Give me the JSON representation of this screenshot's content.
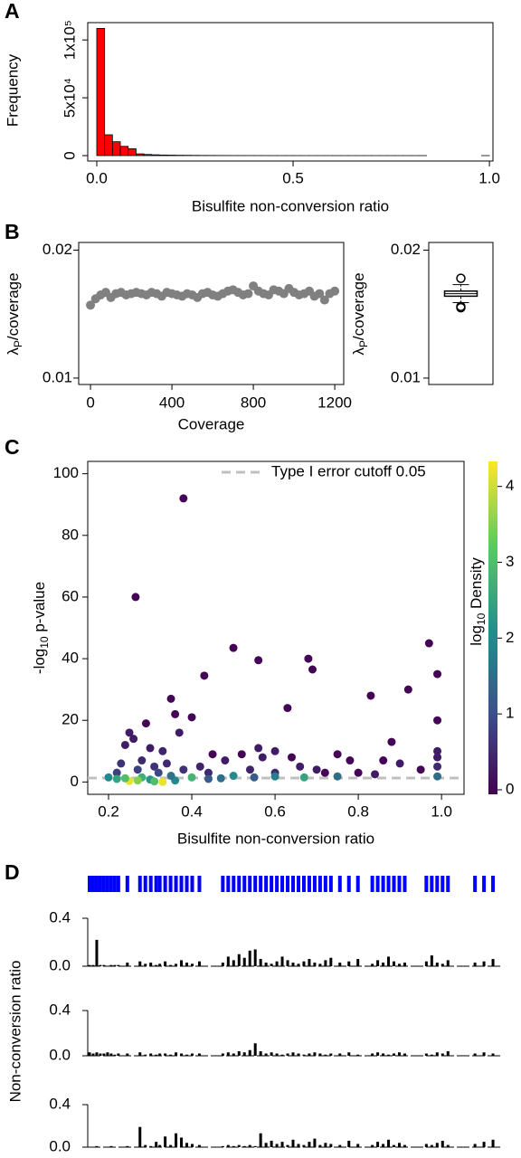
{
  "chart_data": [
    {
      "type": "histogram",
      "panel": "A",
      "xlabel": "Bisulfite non-conversion ratio",
      "ylabel": "Frequency",
      "color": "#ff0000",
      "bins": [
        0,
        0.02,
        0.04,
        0.06,
        0.08,
        0.1,
        0.12,
        0.14,
        0.16,
        0.18,
        0.2,
        0.22,
        0.24,
        0.26,
        0.28,
        0.3,
        0.32,
        0.34,
        0.36,
        0.38,
        0.4,
        0.42,
        0.44,
        0.46,
        0.48,
        0.5,
        0.52,
        0.54,
        0.56,
        0.58,
        0.6,
        0.62,
        0.64,
        0.66,
        0.68,
        0.7,
        0.72,
        0.74,
        0.76,
        0.78,
        0.8,
        0.82,
        0.84,
        0.86,
        0.88,
        0.9,
        0.92,
        0.94,
        0.96,
        0.98,
        1
      ],
      "values": [
        110000,
        18000,
        12000,
        8000,
        6000,
        1500,
        1000,
        700,
        500,
        400,
        300,
        250,
        200,
        150,
        120,
        100,
        80,
        60,
        50,
        40,
        30,
        25,
        20,
        15,
        12,
        10,
        8,
        6,
        5,
        4,
        3,
        3,
        2,
        2,
        2,
        1,
        1,
        1,
        1,
        1,
        1,
        1,
        0,
        0,
        0,
        0,
        0,
        0,
        0,
        1
      ],
      "xlim": [
        -0.023,
        1.009
      ],
      "xticks": [
        {
          "value": 0,
          "label": "0.0"
        },
        {
          "value": 0.5,
          "label": "0.5"
        },
        {
          "value": 1,
          "label": "1.0"
        }
      ],
      "ylim": [
        -4700,
        115000
      ],
      "yticks": [
        0,
        {
          "value": 50000,
          "label": "5x10⁴"
        },
        {
          "value": 100000,
          "label": "1x10⁵"
        }
      ]
    },
    {
      "type": "scatter",
      "panel": "B",
      "xlabel": "Coverage",
      "ylabel": [
        "λ",
        "P",
        "/coverage"
      ],
      "color": "#808080",
      "x": [
        0,
        25,
        50,
        75,
        100,
        125,
        150,
        175,
        200,
        225,
        250,
        275,
        300,
        325,
        350,
        375,
        400,
        425,
        450,
        475,
        500,
        525,
        550,
        575,
        600,
        625,
        650,
        675,
        700,
        725,
        750,
        775,
        800,
        825,
        850,
        875,
        900,
        925,
        950,
        975,
        1000,
        1025,
        1050,
        1075,
        1100,
        1125,
        1150,
        1175,
        1200
      ],
      "values": [
        0.0157,
        0.0162,
        0.0165,
        0.0167,
        0.0163,
        0.0166,
        0.0167,
        0.0165,
        0.0166,
        0.0167,
        0.0166,
        0.0165,
        0.0167,
        0.0166,
        0.0164,
        0.0167,
        0.0166,
        0.0165,
        0.0164,
        0.0166,
        0.0165,
        0.0163,
        0.0166,
        0.0167,
        0.0165,
        0.0164,
        0.0166,
        0.0168,
        0.0169,
        0.0167,
        0.0165,
        0.0166,
        0.0172,
        0.0168,
        0.0166,
        0.0165,
        0.0169,
        0.0168,
        0.0166,
        0.017,
        0.0167,
        0.0165,
        0.0166,
        0.0168,
        0.0164,
        0.0166,
        0.0161,
        0.0166,
        0.0168
      ],
      "xlim": [
        -58,
        1244
      ],
      "xticks": [
        0,
        400,
        800,
        1200
      ],
      "ylim": [
        0.0095,
        0.0206
      ],
      "yticks": [
        0.01,
        0.02
      ]
    },
    {
      "type": "box",
      "ylabel": [
        "λ",
        "P",
        "/coverage"
      ],
      "color": "#000000",
      "median": 0.0166,
      "q1": 0.0164,
      "q3": 0.0168,
      "whisker_low": 0.0159,
      "whisker_high": 0.0173,
      "outliers": [
        0.0178,
        0.0156,
        0.0155
      ],
      "ylim": [
        0.0095,
        0.0206
      ],
      "yticks": [
        0.01,
        0.02
      ]
    },
    {
      "type": "density-scatter",
      "panel": "C",
      "xlabel": "Bisulfite non-conversion ratio",
      "ylabel": [
        "-log",
        "10",
        " p-value"
      ],
      "colorbar_label": [
        "log",
        "10",
        " Density"
      ],
      "colormap": "viridis",
      "clim": [
        -0.06,
        4.33
      ],
      "cticks": [
        0,
        1,
        2,
        3,
        4
      ],
      "hline": 1.3,
      "hline_color": "#c0c0c0",
      "legend_label": "Type I error cutoff 0.05",
      "legend": "upper right",
      "x": [
        0.38,
        0.265,
        0.5,
        0.56,
        0.68,
        0.69,
        0.97,
        0.99,
        0.43,
        0.63,
        0.92,
        0.83,
        0.35,
        0.36,
        0.4,
        0.37,
        0.25,
        0.26,
        0.29,
        0.24,
        0.3,
        0.33,
        0.99,
        0.99,
        0.99,
        0.99,
        0.88,
        0.86,
        0.9,
        0.75,
        0.78,
        0.56,
        0.6,
        0.57,
        0.52,
        0.48,
        0.45,
        0.64,
        0.66,
        0.7,
        0.72,
        0.8,
        0.84,
        0.95,
        0.28,
        0.31,
        0.34,
        0.38,
        0.42,
        0.22,
        0.23,
        0.27,
        0.32,
        0.44,
        0.54,
        0.6,
        0.25,
        0.33,
        0.22,
        0.28,
        0.3,
        0.24,
        0.27,
        0.4,
        0.36,
        0.47,
        0.5,
        0.6,
        0.67,
        0.75,
        0.44,
        0.55,
        0.99,
        0.2,
        0.35,
        0.31
      ],
      "values": [
        92,
        60,
        43.5,
        39.5,
        40,
        36.5,
        45,
        35,
        34.5,
        24,
        30,
        28,
        27,
        22,
        21,
        16,
        16,
        14,
        19,
        12,
        11,
        10,
        20,
        10,
        8,
        5,
        13,
        7,
        6,
        9,
        7,
        11,
        10,
        8,
        9,
        7,
        9,
        8,
        5,
        4,
        3,
        3,
        2.5,
        4,
        7,
        5,
        6,
        4,
        5,
        3,
        6,
        4,
        3,
        3,
        4,
        3,
        0.3,
        0,
        1,
        1.5,
        0.8,
        1.2,
        0.5,
        1.5,
        0.5,
        1.2,
        2,
        1.8,
        1.5,
        1.8,
        1,
        1.5,
        1.8,
        1.5,
        2,
        0.2
      ],
      "density": [
        0,
        0,
        0,
        0,
        0,
        0,
        0,
        0,
        0,
        0,
        0,
        0,
        0,
        0,
        0,
        0.3,
        0.3,
        0.3,
        0,
        0.3,
        0.3,
        0.4,
        0,
        0.3,
        0.3,
        0.5,
        0,
        0,
        0.3,
        0,
        0,
        0.3,
        0.3,
        0.3,
        0,
        0.3,
        0,
        0,
        0.3,
        0.3,
        0,
        0,
        0.3,
        0,
        0.5,
        0.6,
        0.5,
        0.6,
        0.4,
        0.8,
        0.6,
        0.8,
        0.9,
        0.5,
        0.4,
        0.5,
        4.2,
        4.2,
        2.5,
        2.7,
        2.2,
        3,
        3.5,
        2.8,
        2,
        1.5,
        2,
        1.8,
        2.5,
        1.5,
        1.2,
        1.2,
        1.5,
        2,
        1.6,
        3
      ],
      "xlim": [
        0.15,
        1.054
      ],
      "xticks": [
        0.2,
        0.4,
        0.6,
        0.8,
        {
          "value": 1,
          "label": "1.0"
        }
      ],
      "ylim": [
        -4,
        104
      ],
      "yticks": [
        0,
        20,
        40,
        60,
        80,
        100
      ]
    },
    {
      "type": "track",
      "panel": "D",
      "ylabel": "Non-conversion ratio",
      "color": "#000000",
      "tick_color": "#0000ff",
      "x": [
        2,
        6,
        10,
        14,
        18,
        22,
        26,
        30,
        34,
        44,
        58,
        64,
        70,
        76,
        80,
        86,
        92,
        98,
        104,
        110,
        116,
        124,
        150,
        156,
        162,
        168,
        174,
        180,
        186,
        192,
        198,
        204,
        210,
        216,
        222,
        228,
        234,
        240,
        246,
        252,
        258,
        264,
        270,
        280,
        290,
        300,
        316,
        322,
        328,
        334,
        340,
        346,
        352,
        376,
        382,
        388,
        394,
        400,
        430,
        440,
        450
      ],
      "xlim": [
        0,
        460
      ],
      "ylim": [
        0,
        0.4
      ],
      "yticks": [
        {
          "value": 0,
          "label": "0.0"
        },
        0.4
      ],
      "series": [
        {
          "values": [
            0.01,
            0.01,
            0.22,
            0.01,
            0.01,
            0,
            0.01,
            0.01,
            0.01,
            0.03,
            0.04,
            0.02,
            0.03,
            0.01,
            0.02,
            0.04,
            0.01,
            0.02,
            0.05,
            0.03,
            0.02,
            0.04,
            0.03,
            0.08,
            0.05,
            0.1,
            0.07,
            0.13,
            0.14,
            0.06,
            0.03,
            0.02,
            0.04,
            0.08,
            0.05,
            0.03,
            0.02,
            0.04,
            0.06,
            0.03,
            0.02,
            0.05,
            0.07,
            0.03,
            0.04,
            0.06,
            0.02,
            0.05,
            0.03,
            0.08,
            0.04,
            0.02,
            0.03,
            0.04,
            0.09,
            0.03,
            0.02,
            0.05,
            0.03,
            0.04,
            0.06
          ]
        },
        {
          "values": [
            0.03,
            0.02,
            0.03,
            0.02,
            0.02,
            0.03,
            0.02,
            0.01,
            0.02,
            0.02,
            0.03,
            0.01,
            0.02,
            0.01,
            0.02,
            0.02,
            0.01,
            0.03,
            0.02,
            0.01,
            0.02,
            0.02,
            0.02,
            0.03,
            0.02,
            0.04,
            0.03,
            0.05,
            0.11,
            0.04,
            0.02,
            0.03,
            0.02,
            0.01,
            0.02,
            0.03,
            0.02,
            0.01,
            0.02,
            0.03,
            0.02,
            0.01,
            0.02,
            0.02,
            0.03,
            0.01,
            0.02,
            0.03,
            0.02,
            0.01,
            0.02,
            0.03,
            0.02,
            0.02,
            0.01,
            0.03,
            0.02,
            0.04,
            0.02,
            0.03,
            0.02
          ]
        },
        {
          "values": [
            0,
            0,
            0.01,
            0,
            0,
            0,
            0.01,
            0,
            0,
            0.01,
            0.19,
            0.02,
            0.01,
            0.05,
            0.02,
            0.1,
            0.02,
            0.13,
            0.09,
            0.04,
            0.03,
            0.02,
            0.01,
            0.02,
            0.01,
            0.02,
            0.01,
            0.02,
            0.01,
            0.13,
            0.04,
            0.06,
            0.03,
            0.05,
            0.02,
            0.07,
            0.03,
            0.02,
            0.05,
            0.08,
            0.02,
            0.04,
            0.03,
            0.02,
            0.06,
            0.03,
            0.02,
            0.05,
            0.03,
            0.07,
            0.02,
            0.04,
            0.02,
            0.03,
            0.02,
            0.04,
            0.06,
            0.02,
            0.03,
            0.05,
            0.07
          ]
        }
      ]
    }
  ]
}
